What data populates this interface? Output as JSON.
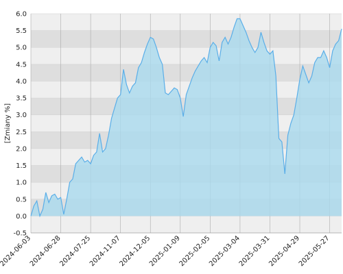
{
  "chart_data": {
    "type": "area",
    "y_label": "[Zmiany %]",
    "categories": [
      "2024-06-03",
      null,
      null,
      null,
      null,
      null,
      null,
      null,
      null,
      null,
      "2024-06-28",
      null,
      null,
      null,
      null,
      null,
      null,
      null,
      null,
      null,
      "2024-07-25",
      null,
      null,
      null,
      null,
      null,
      null,
      null,
      null,
      null,
      "2024-11-07",
      null,
      null,
      null,
      null,
      null,
      null,
      null,
      null,
      null,
      "2024-12-05",
      null,
      null,
      null,
      null,
      null,
      null,
      null,
      null,
      null,
      "2025-01-09",
      null,
      null,
      null,
      null,
      null,
      null,
      null,
      null,
      null,
      "2025-02-05",
      null,
      null,
      null,
      null,
      null,
      null,
      null,
      null,
      null,
      "2025-03-04",
      null,
      null,
      null,
      null,
      null,
      null,
      null,
      null,
      null,
      "2025-03-31",
      null,
      null,
      null,
      null,
      null,
      null,
      null,
      null,
      null,
      "2025-04-29",
      null,
      null,
      null,
      null,
      null,
      null,
      null,
      null,
      null,
      "2025-05-27",
      null,
      null,
      null,
      null
    ],
    "series": [
      {
        "name": null,
        "color": "#5aaee8",
        "fill": "#a9d9ee",
        "values": [
          0.0,
          0.3,
          0.45,
          0.0,
          0.2,
          0.7,
          0.4,
          0.6,
          0.65,
          0.5,
          0.55,
          0.05,
          0.5,
          1.0,
          1.1,
          1.55,
          1.65,
          1.75,
          1.6,
          1.65,
          1.55,
          1.8,
          1.9,
          2.45,
          1.9,
          2.0,
          2.4,
          2.9,
          3.2,
          3.5,
          3.6,
          4.35,
          3.9,
          3.65,
          3.85,
          3.95,
          4.4,
          4.55,
          4.85,
          5.1,
          5.3,
          5.25,
          5.0,
          4.7,
          4.5,
          3.65,
          3.6,
          3.7,
          3.8,
          3.75,
          3.5,
          2.95,
          3.6,
          3.85,
          4.1,
          4.3,
          4.45,
          4.6,
          4.7,
          4.55,
          5.0,
          5.15,
          5.05,
          4.6,
          5.15,
          5.3,
          5.1,
          5.3,
          5.6,
          5.85,
          5.85,
          5.65,
          5.45,
          5.2,
          5.0,
          4.85,
          5.0,
          5.45,
          5.15,
          4.9,
          4.8,
          4.9,
          4.15,
          2.3,
          2.2,
          1.25,
          2.4,
          2.75,
          3.0,
          3.5,
          4.05,
          4.45,
          4.2,
          3.95,
          4.15,
          4.55,
          4.7,
          4.7,
          4.9,
          4.7,
          4.4,
          4.9,
          5.1,
          5.2,
          5.55
        ]
      }
    ],
    "ylim": [
      -0.5,
      6
    ],
    "yticks": [
      -0.5,
      {
        "value": 0,
        "label": "0.0"
      },
      0.5,
      {
        "value": 1,
        "label": "1.0"
      },
      1.5,
      {
        "value": 2,
        "label": "2.0"
      },
      2.5,
      {
        "value": 3,
        "label": "3.0"
      },
      3.5,
      {
        "value": 4,
        "label": "4.0"
      },
      4.5,
      {
        "value": 5,
        "label": "5.0"
      },
      5.5,
      {
        "value": 6,
        "label": "6.0"
      }
    ],
    "grid": "bands"
  }
}
